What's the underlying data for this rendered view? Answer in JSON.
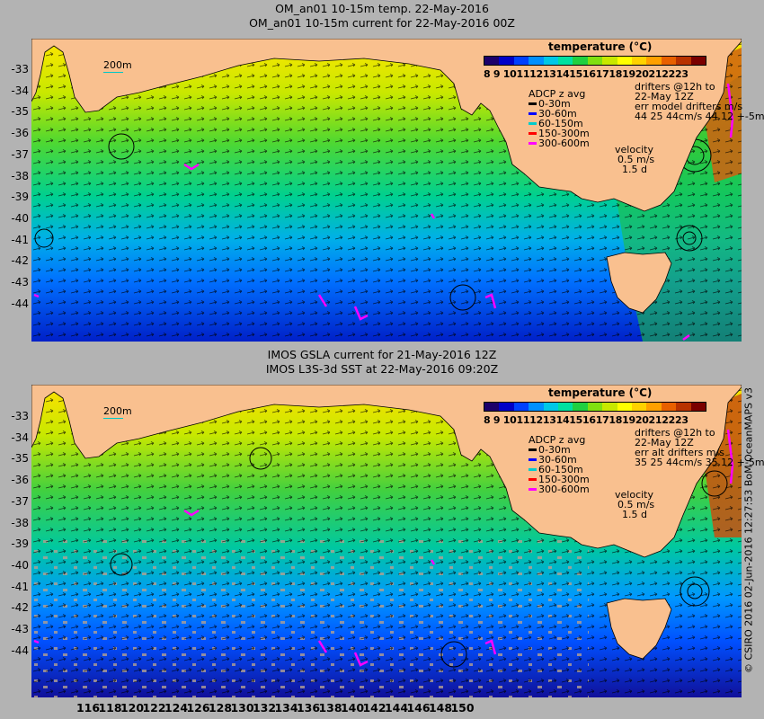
{
  "top_panel": {
    "title_line1": "OM_an01 10-15m temp. 22-May-2016",
    "title_line2": "OM_an01 10-15m current for 22-May-2016 00Z",
    "depth_contour_label": "200m",
    "colorbar_title": "temperature (°C)",
    "colorbar_ticks": "8  9 1011121314151617181920212223",
    "adcp_title": "ADCP z avg",
    "adcp_items": [
      {
        "label": "0-30m",
        "color": "#000000"
      },
      {
        "label": "30-60m",
        "color": "#0000ff"
      },
      {
        "label": "60-150m",
        "color": "#00cccc"
      },
      {
        "label": "150-300m",
        "color": "#ff0000"
      },
      {
        "label": "300-600m",
        "color": "#ff00ff"
      }
    ],
    "drifters_line1": "drifters @12h to",
    "drifters_line2": "22-May 12Z",
    "drifters_line3": "err model drifters m/s",
    "drifters_line4": "44 25 44cm/s 44 12 +-5m",
    "velocity_label": "velocity",
    "velocity_value": "0.5 m/s",
    "velocity_ratio": "1.5 d"
  },
  "bottom_panel": {
    "title_line1": "IMOS GSLA current for 21-May-2016 12Z",
    "title_line2": "IMOS L3S-3d SST at 22-May-2016 09:20Z",
    "depth_contour_label": "200m",
    "colorbar_title": "temperature (°C)",
    "colorbar_ticks": "8  9 1011121314151617181920212223",
    "adcp_title": "ADCP z avg",
    "adcp_items": [
      {
        "label": "0-30m",
        "color": "#000000"
      },
      {
        "label": "30-60m",
        "color": "#0000ff"
      },
      {
        "label": "60-150m",
        "color": "#00cccc"
      },
      {
        "label": "150-300m",
        "color": "#ff0000"
      },
      {
        "label": "300-600m",
        "color": "#ff00ff"
      }
    ],
    "drifters_line1": "drifters @12h to",
    "drifters_line2": "22-May 12Z",
    "drifters_line3": "err alt drifters m/s",
    "drifters_line4": "35 25 44cm/s 35 12 +-5m",
    "velocity_label": "velocity",
    "velocity_value": "0.5 m/s",
    "velocity_ratio": "1.5 d"
  },
  "latitude_labels": [
    "-33",
    "-34",
    "-35",
    "-36",
    "-37",
    "-38",
    "-39",
    "-40",
    "-41",
    "-42",
    "-43",
    "-44"
  ],
  "longitude_labels": [
    "116",
    "118",
    "120",
    "122",
    "124",
    "126",
    "128",
    "130",
    "132",
    "134",
    "136",
    "138",
    "140",
    "142",
    "144",
    "146",
    "148",
    "150"
  ],
  "side_credit": "© CSIRO 2016  02-Jun-2016 12:27:53 BoM OceanMAPS v3",
  "colors": {
    "land": "#f9c08f",
    "colormap": [
      "#1c006a",
      "#0000c8",
      "#0040ff",
      "#0090ff",
      "#00c8e6",
      "#00e0a0",
      "#20d040",
      "#80e010",
      "#c8e800",
      "#ffff00",
      "#ffd200",
      "#ffa000",
      "#e86000",
      "#b83200",
      "#7a0000"
    ]
  }
}
